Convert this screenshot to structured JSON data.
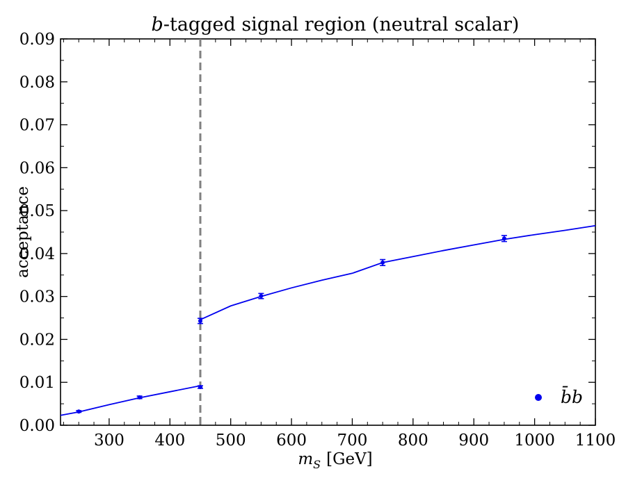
{
  "chart_data": {
    "type": "scatter",
    "title_prefix": "b",
    "title_rest": "-tagged signal region (neutral scalar)",
    "xlabel_var": "m",
    "xlabel_sub": "S",
    "xlabel_unit": "[GeV]",
    "ylabel": "acceptance",
    "xlim": [
      220,
      1100
    ],
    "ylim": [
      0.0,
      0.09
    ],
    "x_ticks": [
      300,
      400,
      500,
      600,
      700,
      800,
      900,
      1000,
      1100
    ],
    "x_tick_labels": [
      "300",
      "400",
      "500",
      "600",
      "700",
      "800",
      "900",
      "1000",
      "1100"
    ],
    "y_ticks": [
      0.0,
      0.01,
      0.02,
      0.03,
      0.04,
      0.05,
      0.06,
      0.07,
      0.08,
      0.09
    ],
    "y_tick_labels": [
      "0.00",
      "0.01",
      "0.02",
      "0.03",
      "0.04",
      "0.05",
      "0.06",
      "0.07",
      "0.08",
      "0.09"
    ],
    "threshold_line": {
      "x": 450,
      "style": "dashed",
      "color": "#808080"
    },
    "series": [
      {
        "name": "bb",
        "legend_label": "b̄b",
        "color": "#0000ee",
        "x": [
          250,
          350,
          450,
          450,
          550,
          750,
          950
        ],
        "y": [
          0.0032,
          0.0065,
          0.0089,
          0.0243,
          0.0301,
          0.0379,
          0.0435
        ],
        "yerr": [
          0.0002,
          0.0003,
          0.0003,
          0.0006,
          0.0006,
          0.0007,
          0.0007
        ]
      }
    ],
    "fit_curves": [
      {
        "x": [
          220,
          250,
          300,
          350,
          400,
          450
        ],
        "y": [
          0.0023,
          0.0031,
          0.0048,
          0.0064,
          0.0078,
          0.0092
        ]
      },
      {
        "x": [
          450,
          500,
          550,
          600,
          650,
          700,
          750,
          800,
          850,
          900,
          950,
          1000,
          1050,
          1100
        ],
        "y": [
          0.0246,
          0.0278,
          0.03,
          0.032,
          0.0338,
          0.0354,
          0.0379,
          0.0393,
          0.0407,
          0.042,
          0.0433,
          0.0444,
          0.0454,
          0.0465
        ]
      }
    ],
    "legend_position": "lower-right"
  }
}
